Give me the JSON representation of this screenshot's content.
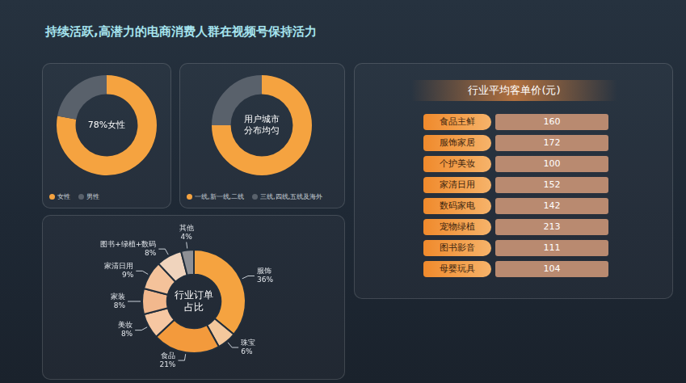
{
  "title": "持续活跃,高潜力的电商消费人群在视频号保持活力",
  "chart_data": [
    {
      "type": "doughnut",
      "center_text": "78%女性",
      "categories": [
        "女性",
        "男性"
      ],
      "values": [
        78,
        22
      ],
      "colors": [
        "#f5a340",
        "#59616b"
      ],
      "legend": "bottom"
    },
    {
      "type": "doughnut",
      "center_text": "用户城市分布均匀",
      "categories": [
        "一线,新一线,二线",
        "三线,四线,五线及海外"
      ],
      "values": [
        75,
        25
      ],
      "colors": [
        "#f5a340",
        "#59616b"
      ],
      "legend": "bottom"
    },
    {
      "type": "doughnut",
      "center_text": "行业订单占比",
      "categories": [
        "服饰",
        "珠宝",
        "食品",
        "美妆",
        "家装",
        "家清日用",
        "图书+绿植+数码",
        "其他"
      ],
      "values": [
        36,
        6,
        21,
        8,
        8,
        9,
        8,
        4
      ],
      "value_labels": [
        "36%",
        "6%",
        "21%",
        "8%",
        "8%",
        "9%",
        "8%",
        "4%"
      ],
      "colors": [
        "#f5a340",
        "#f4c89c",
        "#f39a3c",
        "#f6c7a2",
        "#f2b88d",
        "#f4c29a",
        "#f0d4bd",
        "#8d8f94"
      ],
      "data_labels": true
    }
  ],
  "table": {
    "title": "行业平均客单价(元)",
    "rows": [
      [
        "食品主鲜",
        160
      ],
      [
        "服饰家居",
        172
      ],
      [
        "个护美妆",
        100
      ],
      [
        "家清日用",
        152
      ],
      [
        "数码家电",
        142
      ],
      [
        "宠物绿植",
        213
      ],
      [
        "图书影音",
        111
      ],
      [
        "母婴玩具",
        104
      ]
    ]
  }
}
